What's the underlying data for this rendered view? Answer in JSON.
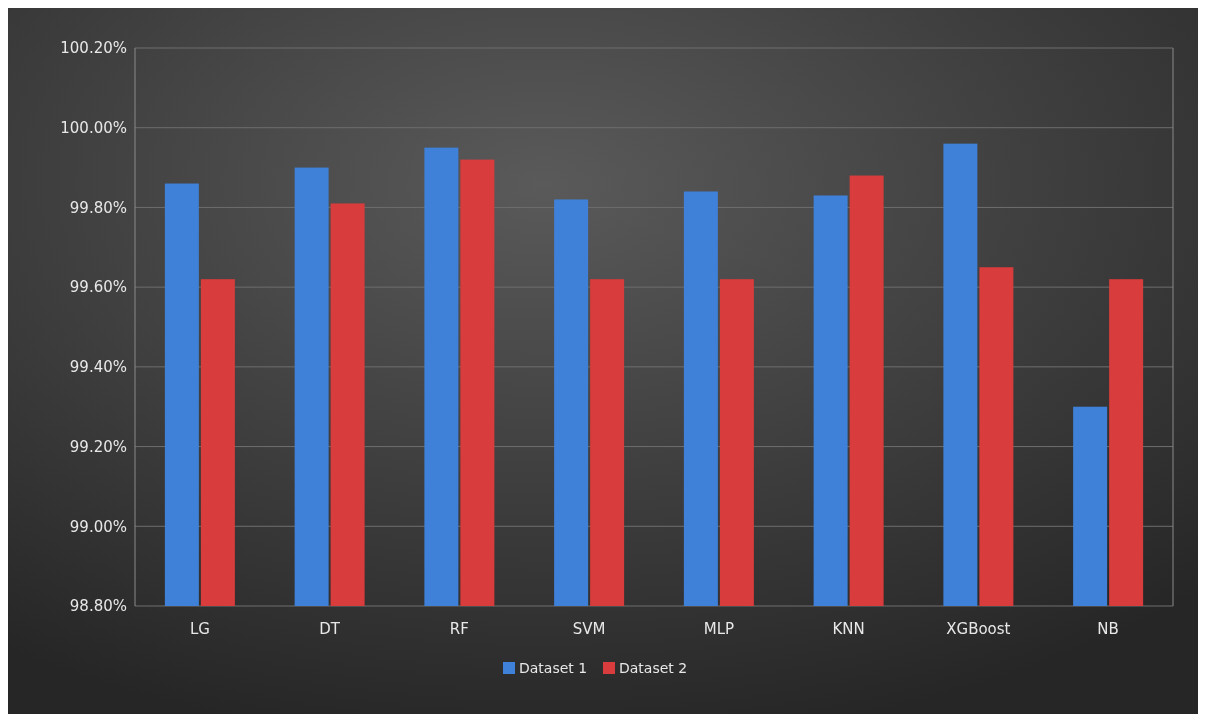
{
  "chart_data": {
    "type": "bar",
    "categories": [
      "LG",
      "DT",
      "RF",
      "SVM",
      "MLP",
      "KNN",
      "XGBoost",
      "NB"
    ],
    "series": [
      {
        "name": "Dataset 1",
        "color": "#3f80d8",
        "values": [
          99.86,
          99.9,
          99.95,
          99.82,
          99.84,
          99.83,
          99.96,
          99.3
        ]
      },
      {
        "name": "Dataset 2",
        "color": "#d83c3c",
        "values": [
          99.62,
          99.81,
          99.92,
          99.62,
          99.62,
          99.88,
          99.65,
          99.62
        ]
      }
    ],
    "ylim": [
      98.8,
      100.2
    ],
    "yticks": [
      {
        "value": 98.8,
        "label": "98.80%"
      },
      {
        "value": 99,
        "label": "99.00%"
      },
      {
        "value": 99.2,
        "label": "99.20%"
      },
      {
        "value": 99.4,
        "label": "99.40%"
      },
      {
        "value": 99.6,
        "label": "99.60%"
      },
      {
        "value": 99.8,
        "label": "99.80%"
      },
      {
        "value": 100,
        "label": "100.00%"
      },
      {
        "value": 100.2,
        "label": "100.20%"
      }
    ],
    "grid": "y",
    "legend": "bottom"
  }
}
